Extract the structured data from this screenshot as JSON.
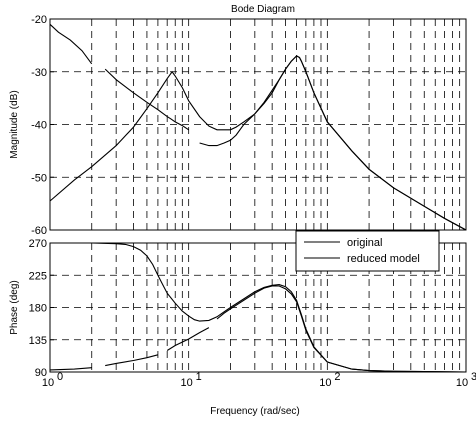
{
  "chart_data": [
    {
      "panel": "magnitude",
      "type": "line",
      "title": "Bode Diagram",
      "xlabel": "",
      "ylabel": "Magnitude (dB)",
      "xscale": "log",
      "xlim": [
        1,
        1000
      ],
      "ylim": [
        -60,
        -20
      ],
      "yticks": [
        -60,
        -50,
        -40,
        -30,
        -20
      ],
      "ytick_labels": [
        "-60",
        "-50",
        "-40",
        "-30",
        "-20"
      ],
      "grid": true,
      "grid_style": "dashed",
      "legend": null,
      "series": [
        {
          "role": "original",
          "x": [
            1,
            1.5,
            2,
            3,
            4,
            5,
            6,
            7,
            7.6,
            8,
            9,
            10,
            12,
            14,
            16,
            18,
            20,
            22,
            25,
            30,
            35,
            40,
            45,
            50,
            55,
            60,
            63,
            65,
            70,
            80,
            100,
            150,
            200,
            300,
            500,
            700,
            1000
          ],
          "y": [
            -54.5,
            -50.5,
            -48,
            -44,
            -40.5,
            -37,
            -34,
            -31.3,
            -30,
            -30.8,
            -33,
            -35.5,
            -38.5,
            -40.3,
            -41,
            -41,
            -41,
            -40.5,
            -39.5,
            -38,
            -36,
            -34,
            -31.5,
            -29.5,
            -28,
            -27,
            -27.3,
            -28,
            -30,
            -34,
            -39.5,
            -45,
            -48.5,
            -52,
            -55.5,
            -57.8,
            -60
          ]
        },
        {
          "role": "reduced model",
          "x": [
            1,
            1.15,
            1.4,
            1.7,
            2,
            2.1,
            2.5,
            3,
            4,
            5,
            6,
            7,
            7.5,
            8,
            9,
            10,
            11,
            12,
            14,
            16,
            18,
            20,
            22,
            25,
            30,
            35,
            40,
            45,
            50,
            55,
            60,
            63,
            65,
            70,
            80,
            100,
            150,
            200,
            300,
            500,
            700,
            1000
          ],
          "y": [
            -21,
            -22.5,
            -24,
            -26,
            -28.5,
            null,
            -29.5,
            -31.5,
            -34,
            -35.8,
            -37.2,
            -38.5,
            -39,
            -39.5,
            -40.2,
            -41,
            null,
            -43.5,
            -44,
            -44,
            -43.5,
            -43,
            -42,
            -40,
            -38,
            -35.8,
            -33.5,
            -31.5,
            -29.5,
            -28,
            -27,
            -27.3,
            -28,
            -30,
            -34,
            -39.5,
            -45,
            -48.5,
            -52,
            -55.5,
            -57.8,
            -60
          ]
        }
      ]
    },
    {
      "panel": "phase",
      "type": "line",
      "title": "",
      "xlabel": "Frequency  (rad/sec)",
      "ylabel": "Phase (deg)",
      "xscale": "log",
      "xlim": [
        1,
        1000
      ],
      "ylim": [
        90,
        270
      ],
      "xticks": [
        1,
        10,
        100,
        1000
      ],
      "xtick_labels": [
        "10",
        "10",
        "10",
        "10"
      ],
      "xtick_exponents": [
        "0",
        "1",
        "2",
        "3"
      ],
      "yticks": [
        90,
        135,
        180,
        225,
        270
      ],
      "ytick_labels": [
        "90",
        "135",
        "180",
        "225",
        "270"
      ],
      "grid": true,
      "grid_style": "dashed",
      "legend": {
        "placement": "top-right",
        "entries": [
          "original",
          "reduced model"
        ]
      },
      "series": [
        {
          "name": "original",
          "x": [
            1,
            2,
            3,
            3.5,
            4,
            4.5,
            5,
            5.5,
            6,
            6.5,
            7,
            8,
            9,
            10,
            11,
            12,
            14,
            16,
            18,
            20,
            25,
            30,
            35,
            40,
            45,
            50,
            55,
            60,
            65,
            70,
            80,
            100,
            150,
            200,
            300,
            500,
            1000
          ],
          "y": [
            270,
            270,
            269,
            268,
            265,
            260,
            252,
            240,
            225,
            212,
            200,
            186,
            175,
            168,
            163,
            161,
            162,
            167,
            174,
            180,
            192,
            202,
            208,
            211,
            212,
            209,
            202,
            190,
            170,
            150,
            125,
            104,
            94,
            92,
            91,
            90.5,
            90
          ]
        },
        {
          "name": "reduced model",
          "x": [
            1,
            1.5,
            2,
            2.1,
            2.5,
            3,
            4,
            5,
            6,
            6.5,
            7,
            8,
            10,
            12,
            14,
            14.5,
            16,
            18,
            20,
            25,
            30,
            35,
            40,
            45,
            50,
            55,
            60,
            65,
            70,
            80,
            100,
            150,
            200,
            300,
            500,
            1000
          ],
          "y": [
            93,
            94,
            96,
            null,
            99,
            102,
            106,
            110,
            114,
            null,
            120,
            127,
            136,
            145,
            152,
            null,
            164,
            172,
            178,
            190,
            200,
            207,
            210,
            210,
            206,
            199,
            188,
            168,
            148,
            124,
            104,
            94,
            92,
            91,
            90.5,
            90
          ]
        }
      ]
    }
  ],
  "colors": {
    "background": "#ffffff",
    "axes": "#000000",
    "grid": "#000000",
    "lines": "#000000"
  }
}
